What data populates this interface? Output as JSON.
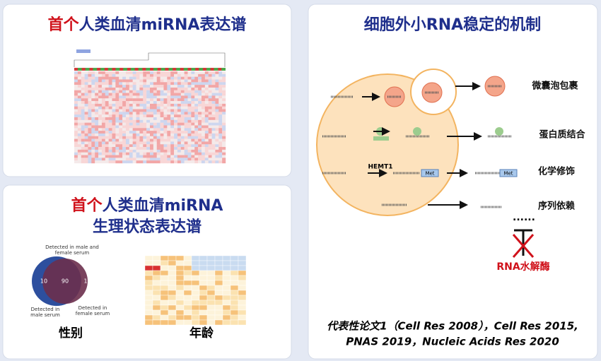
{
  "panel_expression": {
    "title_red": "首个",
    "title_blue": "人类血清miRNA表达谱"
  },
  "panel_physiology": {
    "title_red": "首个",
    "title_blue": "人类血清miRNA",
    "title_line2": "生理状态表达谱",
    "venn": {
      "label_both": "Detected in male and female serum",
      "label_male": "Detected in male serum",
      "label_female": "Detected in female serum",
      "male_only": "10",
      "shared": "90",
      "female_only": "1"
    },
    "caption_sex": "性别",
    "caption_age": "年龄"
  },
  "panel_mechanism": {
    "title": "细胞外小RNA稳定的机制",
    "mechanisms": [
      "微囊泡包裹",
      "蛋白质结合",
      "化学修饰",
      "序列依赖"
    ],
    "enzyme": "HEMT1",
    "modification": "Met",
    "ellipsis": "......",
    "nuclease": "RNA水解酶",
    "references": [
      "代表性论文1（Cell Res 2008），Cell Res 2015,",
      "PNAS 2019，Nucleic Acids Res 2020"
    ]
  }
}
